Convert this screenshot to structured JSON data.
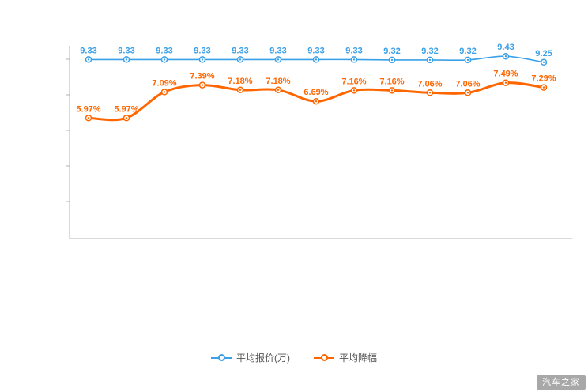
{
  "watermark": "汽车之家",
  "legend": [
    {
      "label": "平均报价(万)",
      "color": "#3aa0e8"
    },
    {
      "label": "平均降幅",
      "color": "#ff6600"
    }
  ],
  "chart_data": {
    "type": "line",
    "title": "",
    "point_count": 13,
    "x_tick_labels": [],
    "y_axis_tick_labels": "not visible",
    "grid": false,
    "legend_position": "bottom",
    "series": [
      {
        "name": "平均报价(万)",
        "color": "#3aa0e8",
        "values": [
          9.33,
          9.33,
          9.33,
          9.33,
          9.33,
          9.33,
          9.33,
          9.33,
          9.32,
          9.32,
          9.32,
          9.43,
          9.25
        ],
        "labels": [
          "9.33",
          "9.33",
          "9.33",
          "9.33",
          "9.33",
          "9.33",
          "9.33",
          "9.33",
          "9.32",
          "9.32",
          "9.32",
          "9.43",
          "9.25"
        ]
      },
      {
        "name": "平均降幅",
        "color": "#ff6600",
        "values": [
          5.97,
          5.97,
          7.09,
          7.39,
          7.18,
          7.18,
          6.69,
          7.16,
          7.16,
          7.06,
          7.06,
          7.49,
          7.29
        ],
        "labels": [
          "5.97%",
          "5.97%",
          "7.09%",
          "7.39%",
          "7.18%",
          "7.18%",
          "6.69%",
          "7.16%",
          "7.16%",
          "7.06%",
          "7.06%",
          "7.49%",
          "7.29%"
        ]
      }
    ]
  }
}
